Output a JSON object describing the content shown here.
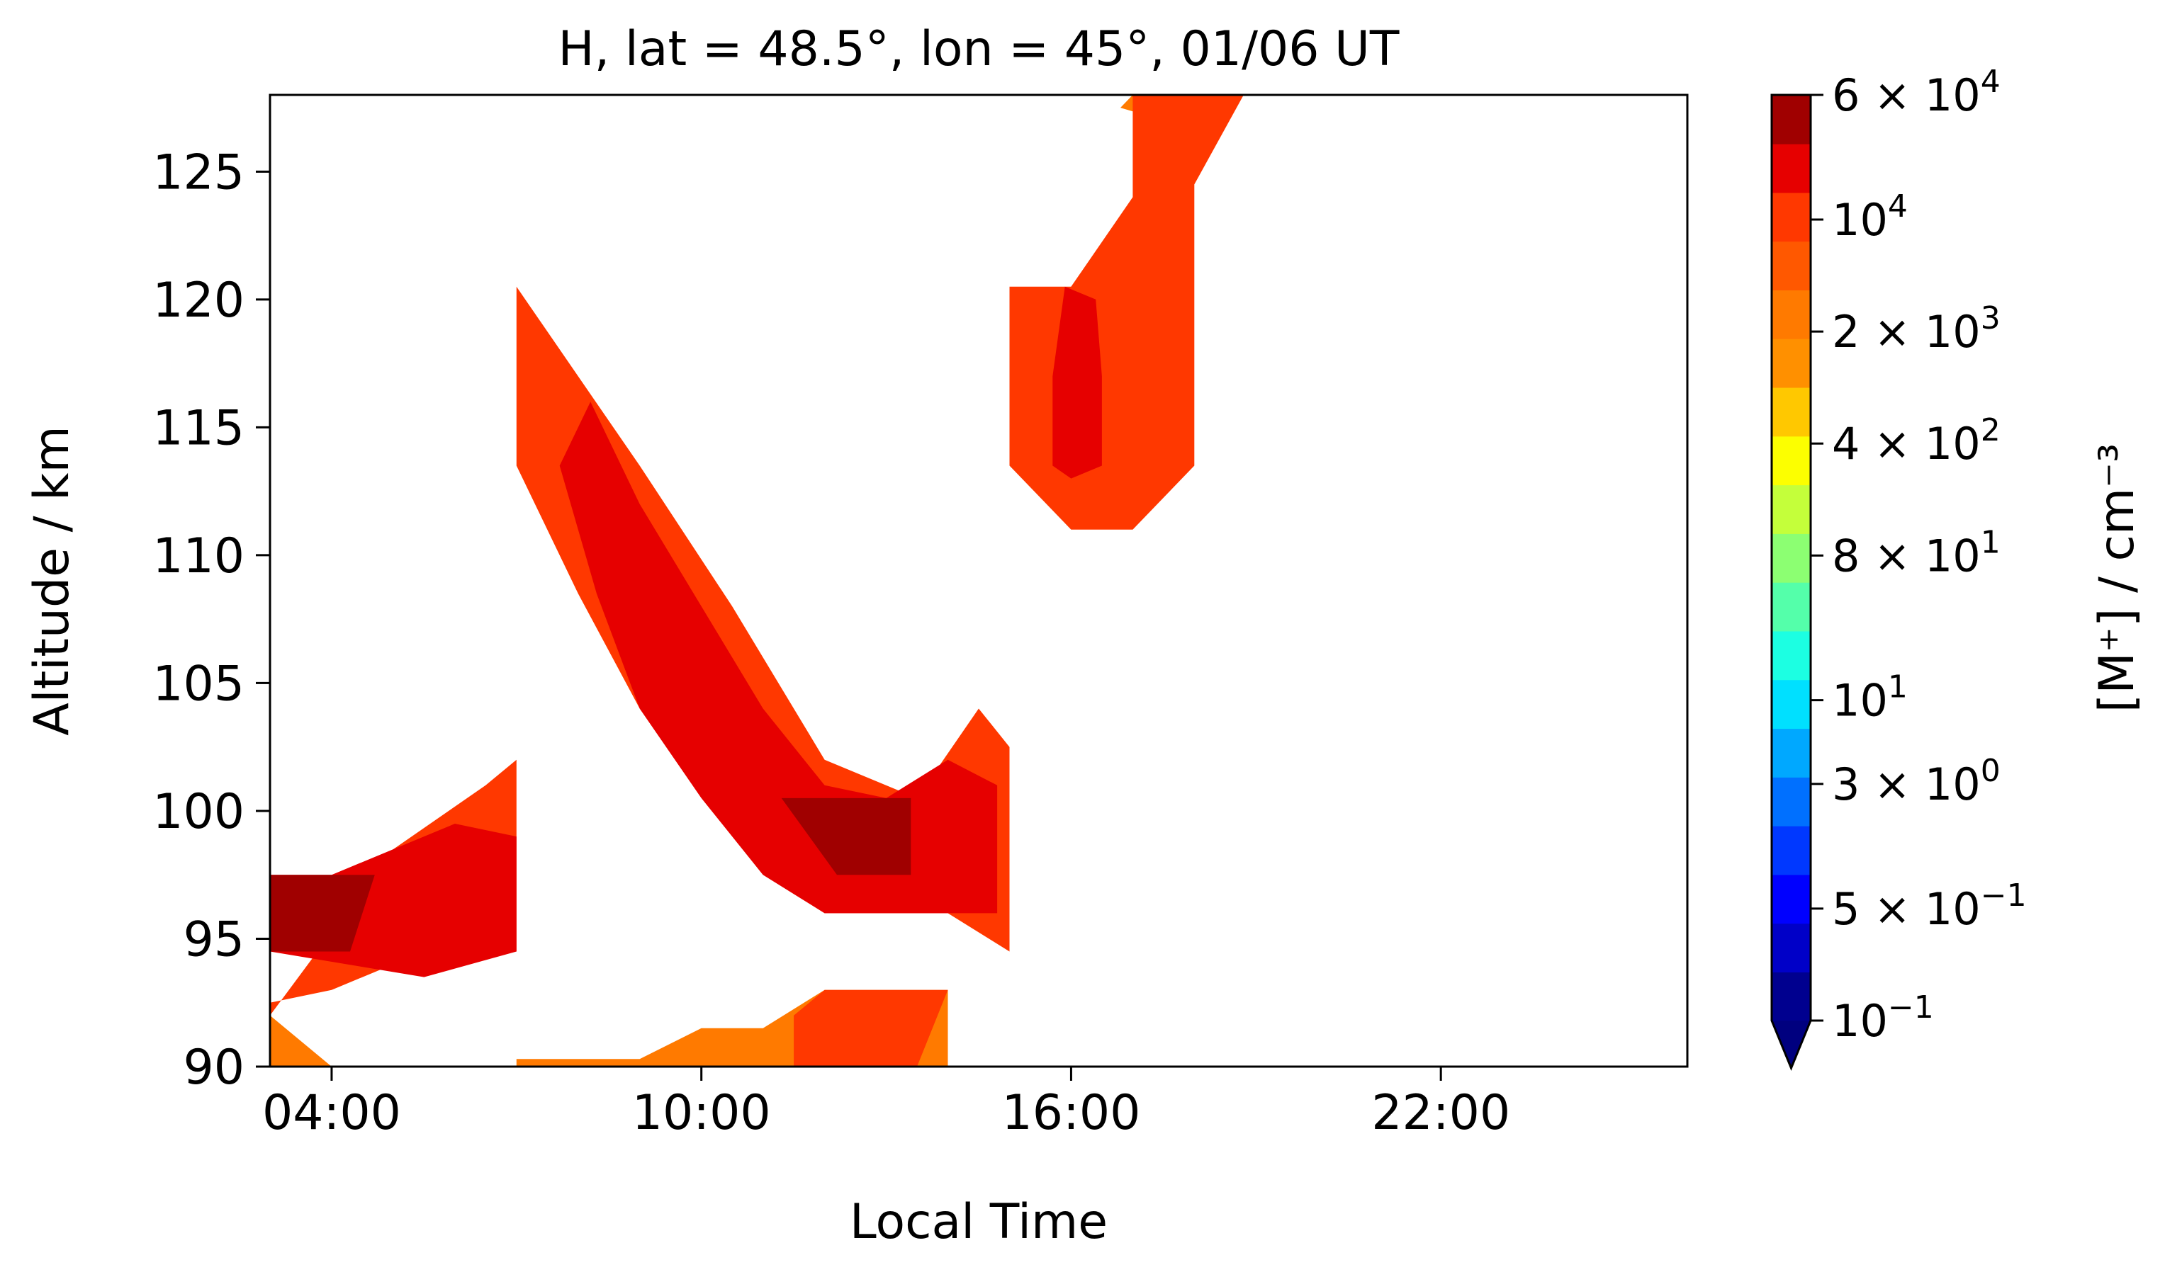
{
  "chart_data": {
    "type": "heatmap",
    "subtype": "filled-contour",
    "title": "H, lat = 48.5°, lon = 45°, 01/06 UT",
    "xlabel": "Local Time",
    "ylabel": "Altitude / km",
    "xlim": [
      3,
      26
    ],
    "ylim": [
      90,
      128
    ],
    "x_ticks": [
      {
        "value": 4,
        "label": "04:00"
      },
      {
        "value": 10,
        "label": "10:00"
      },
      {
        "value": 16,
        "label": "16:00"
      },
      {
        "value": 22,
        "label": "22:00"
      }
    ],
    "y_ticks": [
      {
        "value": 90,
        "label": "90"
      },
      {
        "value": 95,
        "label": "95"
      },
      {
        "value": 100,
        "label": "100"
      },
      {
        "value": 105,
        "label": "105"
      },
      {
        "value": 110,
        "label": "110"
      },
      {
        "value": 115,
        "label": "115"
      },
      {
        "value": 120,
        "label": "120"
      },
      {
        "value": 125,
        "label": "125"
      }
    ],
    "colorbar": {
      "label": "[M⁺] / cm⁻³",
      "scale": "log",
      "range": [
        0.1,
        60000
      ],
      "extend": "min",
      "levels": 19,
      "colors": [
        "#00008f",
        "#0000c8",
        "#0000ff",
        "#0038ff",
        "#0070ff",
        "#00a8ff",
        "#00e0ff",
        "#1cffe2",
        "#54ffaa",
        "#8cff72",
        "#c4ff3a",
        "#fcff00",
        "#ffc800",
        "#ff9000",
        "#ff7a00",
        "#ff5800",
        "#ff3800",
        "#e60000",
        "#a00000"
      ],
      "ticks": [
        {
          "value": 0.1,
          "base": "10",
          "exp": "−1"
        },
        {
          "value": 0.5,
          "base": "5 × 10",
          "exp": "−1"
        },
        {
          "value": 3,
          "base": "3 × 10",
          "exp": "0"
        },
        {
          "value": 10,
          "base": "10",
          "exp": "1"
        },
        {
          "value": 80,
          "base": "8 × 10",
          "exp": "1"
        },
        {
          "value": 400,
          "base": "4 × 10",
          "exp": "2"
        },
        {
          "value": 2000,
          "base": "2 × 10",
          "exp": "3"
        },
        {
          "value": 10000,
          "base": "10",
          "exp": "4"
        },
        {
          "value": 60000,
          "base": "6 × 10",
          "exp": "4"
        }
      ]
    },
    "regions": [
      {
        "name": "low-left-outer",
        "color": "#ff3800",
        "points": [
          [
            3,
            92
          ],
          [
            5,
            98.5
          ],
          [
            6.5,
            101
          ],
          [
            7,
            102
          ],
          [
            7,
            94.5
          ],
          [
            5.5,
            94.5
          ],
          [
            4,
            93
          ],
          [
            3,
            92.5
          ]
        ]
      },
      {
        "name": "low-left-inner",
        "color": "#e60000",
        "points": [
          [
            3,
            94.5
          ],
          [
            3,
            97.5
          ],
          [
            4,
            97.5
          ],
          [
            5,
            98.5
          ],
          [
            6,
            99.5
          ],
          [
            7,
            99
          ],
          [
            7,
            94.5
          ],
          [
            5.5,
            93.5
          ],
          [
            3,
            94.5
          ]
        ]
      },
      {
        "name": "low-left-core",
        "color": "#a00000",
        "points": [
          [
            3,
            94.5
          ],
          [
            3,
            97.5
          ],
          [
            4.7,
            97.5
          ],
          [
            4.3,
            94.5
          ]
        ]
      },
      {
        "name": "bottom-left-orange",
        "color": "#ff7a00",
        "points": [
          [
            3,
            90
          ],
          [
            3,
            92
          ],
          [
            4,
            90
          ]
        ]
      },
      {
        "name": "diagonal-outer",
        "color": "#ff3800",
        "points": [
          [
            7,
            120.5
          ],
          [
            8,
            117
          ],
          [
            9,
            113.5
          ],
          [
            10.5,
            108
          ],
          [
            12,
            102
          ],
          [
            13.5,
            100.5
          ],
          [
            14.5,
            104
          ],
          [
            15,
            102.5
          ],
          [
            15,
            94.5
          ],
          [
            14,
            96
          ],
          [
            12,
            96
          ],
          [
            11,
            97.5
          ],
          [
            10,
            100.5
          ],
          [
            9,
            104
          ],
          [
            8,
            108.5
          ],
          [
            7,
            113.5
          ]
        ]
      },
      {
        "name": "diagonal-inner",
        "color": "#e60000",
        "points": [
          [
            7.7,
            113.5
          ],
          [
            8.2,
            116
          ],
          [
            9,
            112
          ],
          [
            10,
            108
          ],
          [
            11,
            104
          ],
          [
            12,
            101
          ],
          [
            13,
            100.5
          ],
          [
            14,
            102
          ],
          [
            14.8,
            101
          ],
          [
            14.8,
            96
          ],
          [
            14,
            96
          ],
          [
            12,
            96
          ],
          [
            11,
            97.5
          ],
          [
            10,
            100.5
          ],
          [
            9,
            104
          ],
          [
            8.3,
            108.5
          ]
        ]
      },
      {
        "name": "diagonal-core",
        "color": "#a00000",
        "points": [
          [
            11.3,
            100.5
          ],
          [
            12.8,
            100.5
          ],
          [
            13.4,
            100.5
          ],
          [
            13.4,
            97.5
          ],
          [
            12.2,
            97.5
          ]
        ]
      },
      {
        "name": "bottom-mid-orange",
        "color": "#ff7a00",
        "points": [
          [
            7,
            90
          ],
          [
            7,
            90.3
          ],
          [
            9,
            90.3
          ],
          [
            10,
            91.5
          ],
          [
            11,
            91.5
          ],
          [
            12,
            93
          ],
          [
            14,
            93
          ],
          [
            14,
            90
          ]
        ]
      },
      {
        "name": "bottom-mid-red",
        "color": "#ff3800",
        "points": [
          [
            11.5,
            90
          ],
          [
            11.5,
            92
          ],
          [
            12,
            93
          ],
          [
            14,
            93
          ],
          [
            13.5,
            90
          ]
        ]
      },
      {
        "name": "upper-orange",
        "color": "#ff7a00",
        "points": [
          [
            16.8,
            127.5
          ],
          [
            17,
            128
          ],
          [
            18,
            128
          ],
          [
            17.5,
            127
          ]
        ]
      },
      {
        "name": "upper-outer",
        "color": "#ff3800",
        "points": [
          [
            15,
            120.5
          ],
          [
            16,
            120.5
          ],
          [
            17,
            124
          ],
          [
            17,
            128
          ],
          [
            17.8,
            128
          ],
          [
            18.8,
            128
          ],
          [
            18,
            124.5
          ],
          [
            18,
            113.5
          ],
          [
            17,
            111
          ],
          [
            16,
            111
          ],
          [
            15,
            113.5
          ]
        ]
      },
      {
        "name": "upper-inner",
        "color": "#e60000",
        "points": [
          [
            15.7,
            117
          ],
          [
            15.9,
            120.5
          ],
          [
            16.4,
            120
          ],
          [
            16.5,
            117
          ],
          [
            16.5,
            113.5
          ],
          [
            16,
            113
          ],
          [
            15.7,
            113.5
          ]
        ]
      }
    ]
  }
}
